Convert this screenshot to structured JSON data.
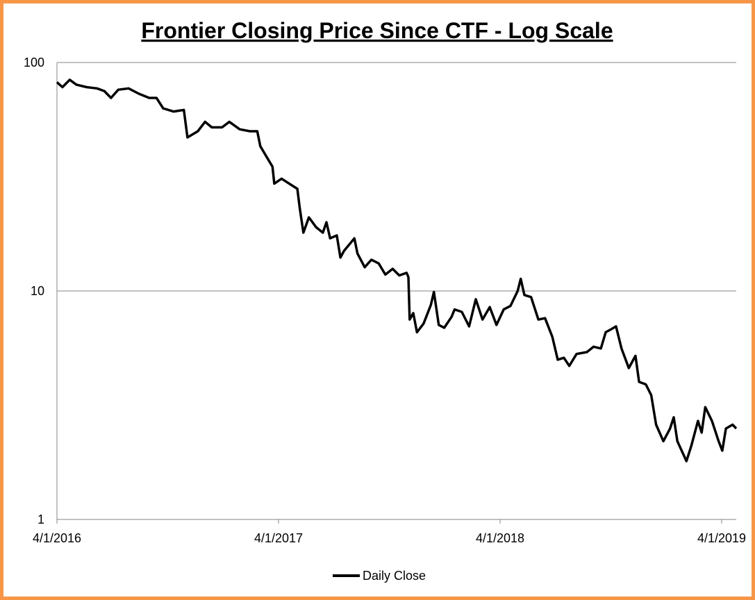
{
  "chart_data": {
    "type": "line",
    "title": "Frontier Closing Price Since CTF - Log Scale",
    "xlabel": "",
    "ylabel": "",
    "y_scale": "log",
    "ylim": [
      1,
      100
    ],
    "y_ticks": [
      {
        "value": 1,
        "label": "1"
      },
      {
        "value": 10,
        "label": "10"
      },
      {
        "value": 100,
        "label": "100"
      }
    ],
    "x_unit": "days since 4/1/2016",
    "xlim": [
      0,
      1120
    ],
    "x_ticks": [
      {
        "value": 0,
        "label": "4/1/2016"
      },
      {
        "value": 365,
        "label": "4/1/2017"
      },
      {
        "value": 730,
        "label": "4/1/2018"
      },
      {
        "value": 1095,
        "label": "4/1/2019"
      }
    ],
    "grid": "horizontal",
    "legend_position": "bottom",
    "colors": {
      "line": "#000000",
      "grid": "#868686",
      "border": "#f79646"
    },
    "series": [
      {
        "name": "Daily Close",
        "points": [
          [
            0,
            82
          ],
          [
            9,
            78
          ],
          [
            21,
            84
          ],
          [
            32,
            80
          ],
          [
            49,
            78
          ],
          [
            66,
            77
          ],
          [
            78,
            75
          ],
          [
            89,
            70
          ],
          [
            101,
            76
          ],
          [
            118,
            77
          ],
          [
            135,
            73
          ],
          [
            152,
            70
          ],
          [
            164,
            70
          ],
          [
            175,
            63
          ],
          [
            192,
            61
          ],
          [
            209,
            62
          ],
          [
            215,
            47
          ],
          [
            232,
            50
          ],
          [
            244,
            55
          ],
          [
            255,
            52
          ],
          [
            272,
            52
          ],
          [
            284,
            55
          ],
          [
            301,
            51
          ],
          [
            318,
            50
          ],
          [
            330,
            50
          ],
          [
            335,
            43
          ],
          [
            347,
            38
          ],
          [
            355,
            35
          ],
          [
            358,
            29.5
          ],
          [
            370,
            31
          ],
          [
            387,
            29
          ],
          [
            396,
            28
          ],
          [
            400,
            23
          ],
          [
            406,
            18
          ],
          [
            415,
            21
          ],
          [
            427,
            19
          ],
          [
            438,
            18
          ],
          [
            444,
            20
          ],
          [
            450,
            17
          ],
          [
            461,
            17.5
          ],
          [
            467,
            14
          ],
          [
            473,
            15
          ],
          [
            490,
            17
          ],
          [
            495,
            14.6
          ],
          [
            507,
            12.7
          ],
          [
            518,
            13.7
          ],
          [
            530,
            13.2
          ],
          [
            541,
            11.8
          ],
          [
            553,
            12.5
          ],
          [
            564,
            11.7
          ],
          [
            576,
            12
          ],
          [
            579,
            11.5
          ],
          [
            581,
            7.5
          ],
          [
            587,
            8
          ],
          [
            593,
            6.6
          ],
          [
            604,
            7.2
          ],
          [
            616,
            8.7
          ],
          [
            621,
            9.9
          ],
          [
            629,
            7.1
          ],
          [
            638,
            6.9
          ],
          [
            650,
            7.7
          ],
          [
            655,
            8.3
          ],
          [
            667,
            8.1
          ],
          [
            679,
            7
          ],
          [
            690,
            9.2
          ],
          [
            701,
            7.5
          ],
          [
            713,
            8.5
          ],
          [
            724,
            7.1
          ],
          [
            736,
            8.3
          ],
          [
            747,
            8.6
          ],
          [
            759,
            10
          ],
          [
            764,
            11.3
          ],
          [
            770,
            9.6
          ],
          [
            781,
            9.4
          ],
          [
            793,
            7.5
          ],
          [
            804,
            7.6
          ],
          [
            816,
            6.3
          ],
          [
            825,
            5
          ],
          [
            835,
            5.1
          ],
          [
            844,
            4.7
          ],
          [
            856,
            5.3
          ],
          [
            873,
            5.4
          ],
          [
            884,
            5.7
          ],
          [
            896,
            5.6
          ],
          [
            904,
            6.6
          ],
          [
            913,
            6.8
          ],
          [
            921,
            7
          ],
          [
            930,
            5.6
          ],
          [
            942,
            4.6
          ],
          [
            953,
            5.2
          ],
          [
            959,
            4.0
          ],
          [
            970,
            3.9
          ],
          [
            979,
            3.5
          ],
          [
            987,
            2.6
          ],
          [
            999,
            2.2
          ],
          [
            1010,
            2.5
          ],
          [
            1016,
            2.8
          ],
          [
            1022,
            2.2
          ],
          [
            1037,
            1.8
          ],
          [
            1045,
            2.1
          ],
          [
            1056,
            2.7
          ],
          [
            1062,
            2.4
          ],
          [
            1068,
            3.1
          ],
          [
            1079,
            2.7
          ],
          [
            1090,
            2.2
          ],
          [
            1096,
            2.0
          ],
          [
            1102,
            2.5
          ],
          [
            1113,
            2.6
          ],
          [
            1119,
            2.5
          ]
        ]
      }
    ]
  }
}
